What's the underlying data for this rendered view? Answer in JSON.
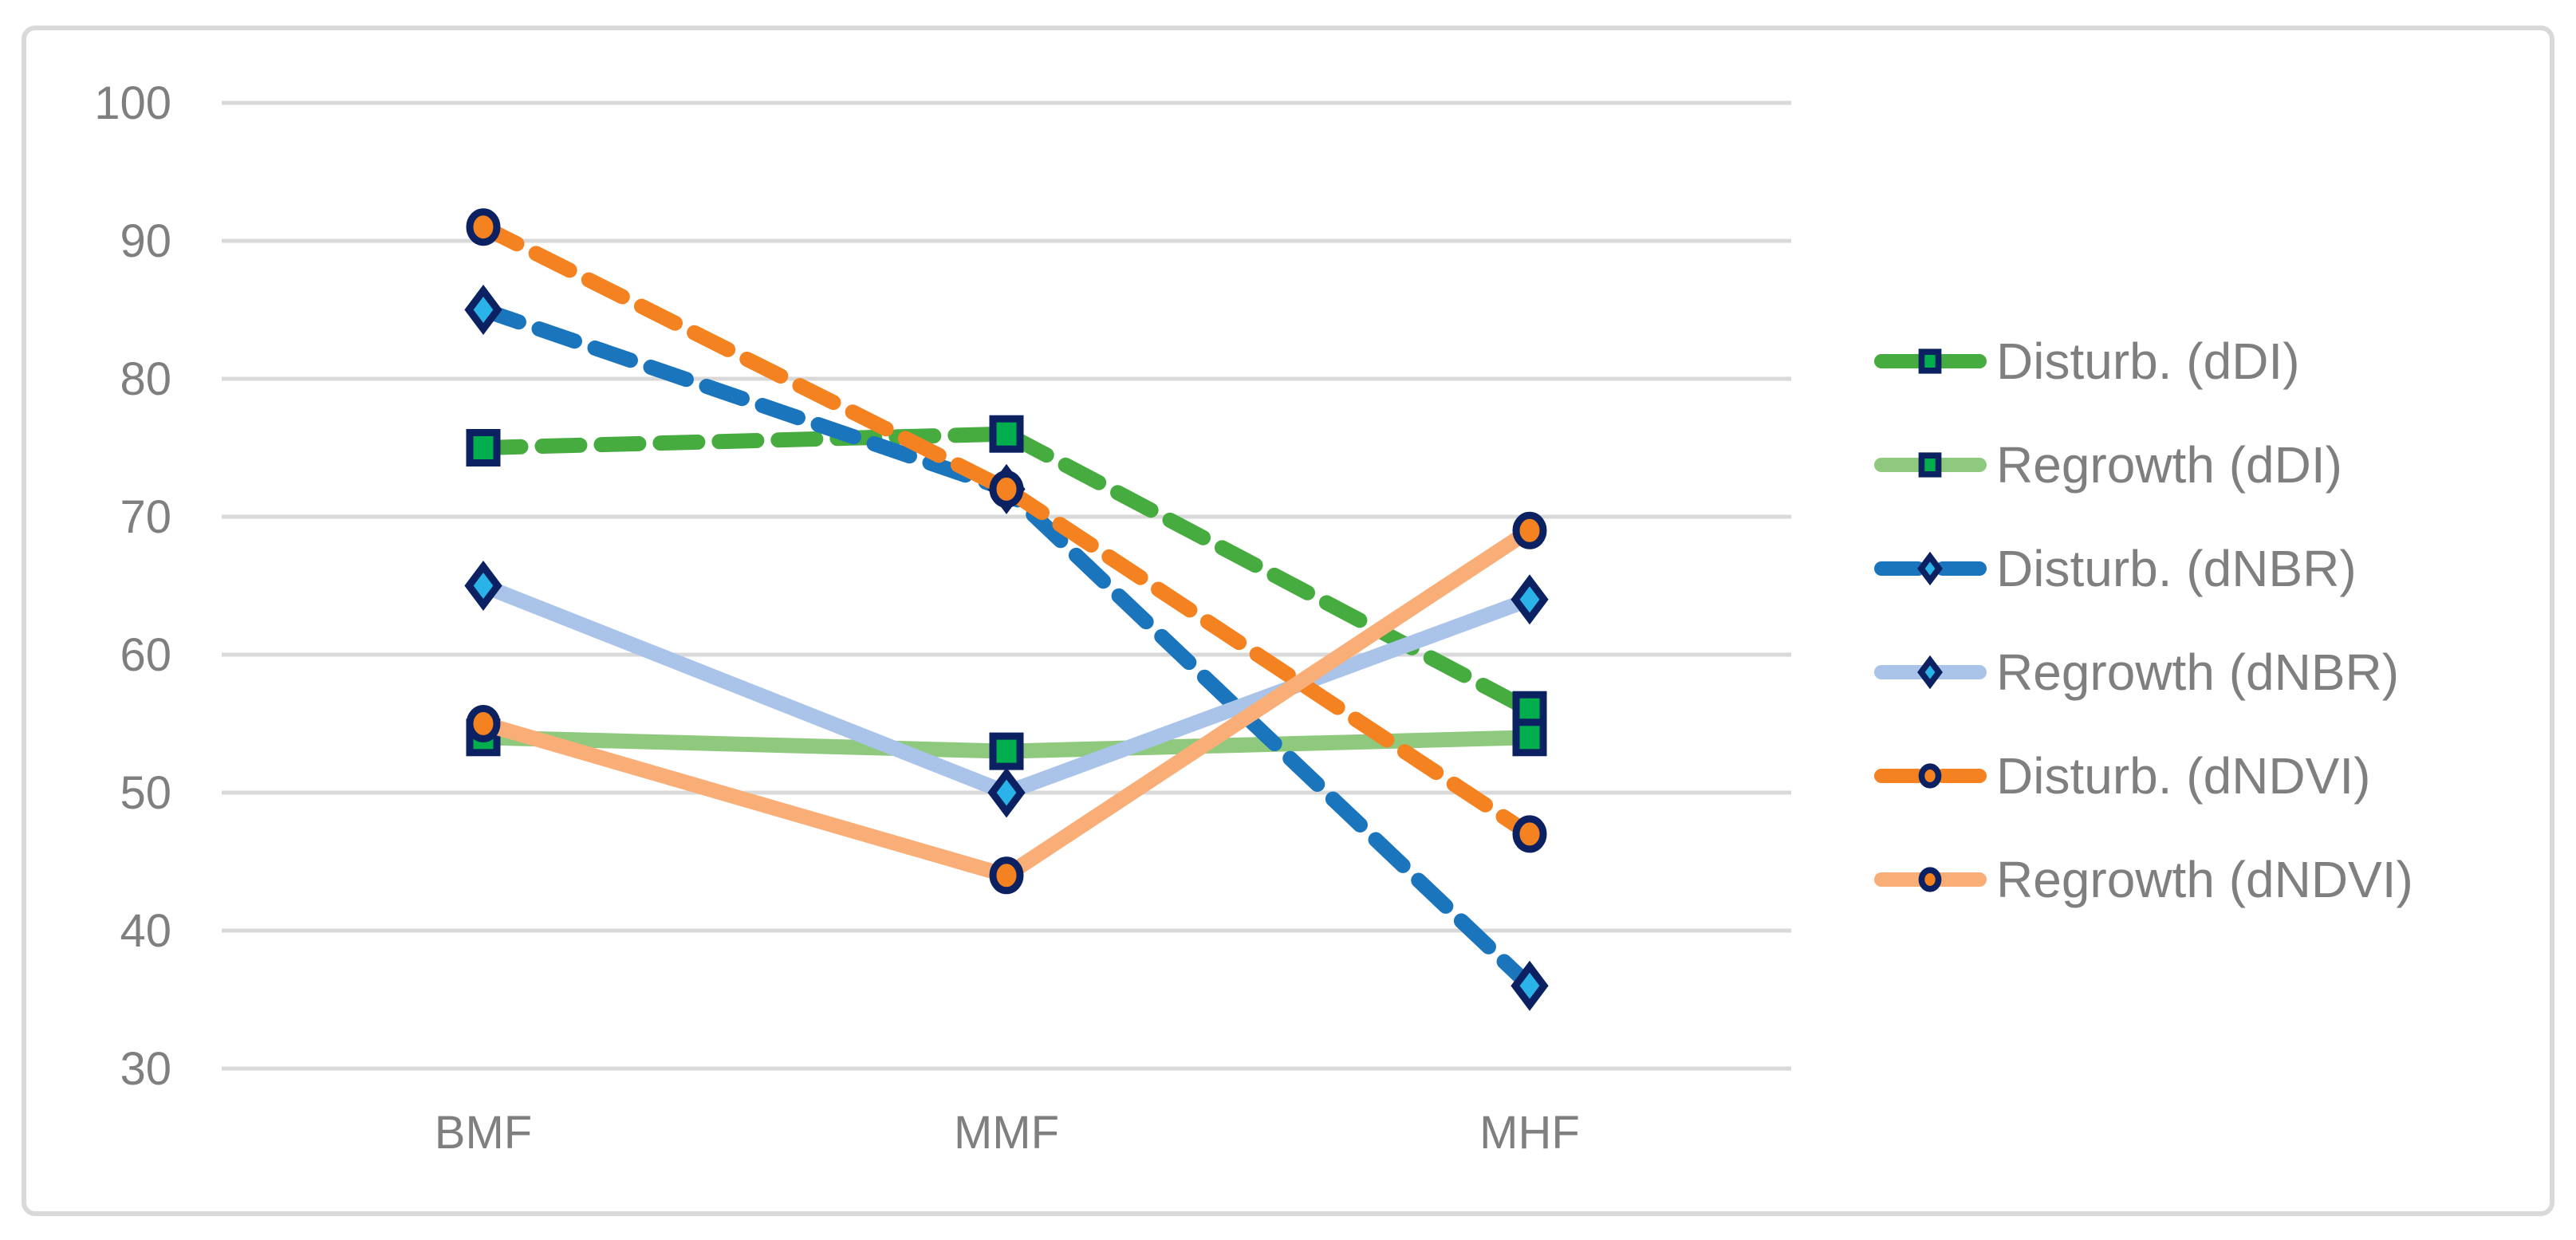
{
  "figure": {
    "background": "#FFFFFF",
    "border_color": "#D9D9D9"
  },
  "chart_data": {
    "type": "line",
    "title": "",
    "categories": [
      "BMF",
      "MMF",
      "MHF"
    ],
    "series": [
      {
        "name": "Disturb. (dDI)",
        "values": [
          75,
          76,
          56
        ],
        "line_color": "#47AC3F",
        "line_style": "dashed",
        "marker": {
          "shape": "square",
          "fill": "#00AE4E",
          "stroke": "#0B2161"
        }
      },
      {
        "name": "Regrowth (dDI)",
        "values": [
          54,
          53,
          54
        ],
        "line_color": "#8FC97E",
        "line_style": "solid",
        "marker": {
          "shape": "square",
          "fill": "#00AE4E",
          "stroke": "#0B2161"
        }
      },
      {
        "name": "Disturb. (dNBR)",
        "values": [
          85,
          72,
          36
        ],
        "line_color": "#1B75BC",
        "line_style": "dashed",
        "marker": {
          "shape": "diamond",
          "fill": "#29B3E8",
          "stroke": "#0B2161"
        }
      },
      {
        "name": "Regrowth (dNBR)",
        "values": [
          65,
          50,
          64
        ],
        "line_color": "#A9C3E9",
        "line_style": "solid",
        "marker": {
          "shape": "diamond",
          "fill": "#29B3E8",
          "stroke": "#0B2161"
        }
      },
      {
        "name": "Disturb. (dNDVI)",
        "values": [
          91,
          72,
          47
        ],
        "line_color": "#F58220",
        "line_style": "dashed",
        "marker": {
          "shape": "circle",
          "fill": "#F58220",
          "stroke": "#0B2161"
        }
      },
      {
        "name": "Regrowth (dNDVI)",
        "values": [
          55,
          44,
          69
        ],
        "line_color": "#F9AE77",
        "line_style": "solid",
        "marker": {
          "shape": "circle",
          "fill": "#F58220",
          "stroke": "#0B2161"
        }
      }
    ],
    "y_axis": {
      "min": 30,
      "max": 100,
      "step": 10,
      "ticks": [
        100,
        90,
        80,
        70,
        60,
        50,
        40,
        30
      ]
    },
    "x_axis": {
      "labels": [
        "BMF",
        "MMF",
        "MHF"
      ]
    },
    "grid": true,
    "gridline_color": "#D9D9D9",
    "text_color": "#7F7F7F",
    "legend_position": "right"
  }
}
